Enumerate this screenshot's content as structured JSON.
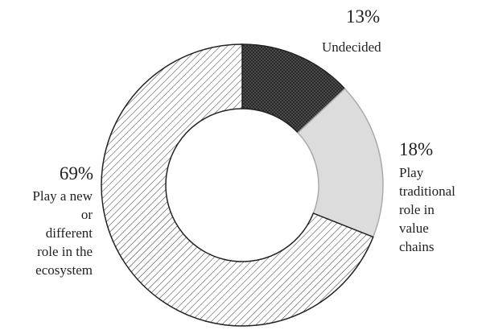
{
  "chart_data": {
    "type": "donut",
    "categories": [
      "Undecided",
      "Play traditional role in value chains",
      "Play a new or different role in the ecosystem"
    ],
    "values": [
      13,
      18,
      69
    ],
    "value_labels": [
      "13%",
      "18%",
      "69%"
    ],
    "colors": [
      "#2b2b2b",
      "#dcdcdc",
      "#ffffff"
    ]
  }
}
